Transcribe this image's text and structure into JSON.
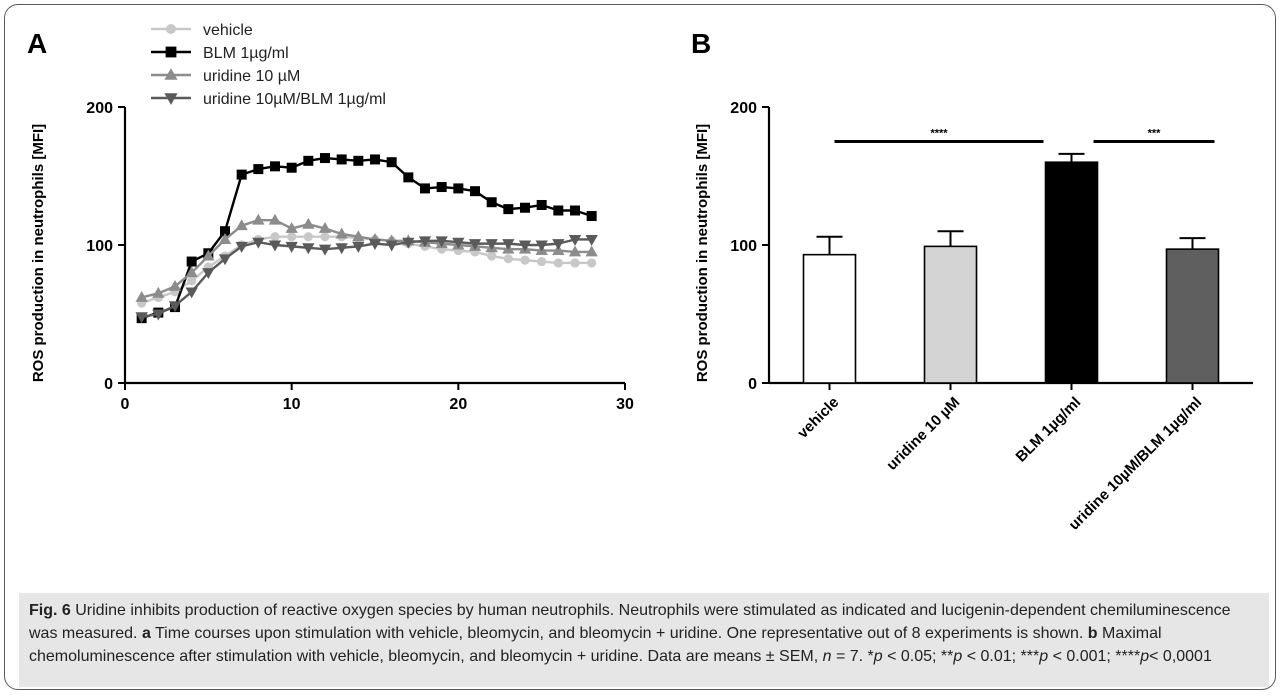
{
  "panels": {
    "a_letter": "A",
    "b_letter": "B"
  },
  "chart_data": [
    {
      "type": "line",
      "ylabel": "ROS production in neutrophils [MFI]",
      "xlabel": "",
      "xlim": [
        0,
        30
      ],
      "ylim": [
        0,
        200
      ],
      "xticks": [
        "0",
        "10",
        "20",
        "30"
      ],
      "yticks": [
        "0",
        "100",
        "200"
      ],
      "legend_position": "top-left",
      "x": [
        1,
        2,
        3,
        4,
        5,
        6,
        7,
        8,
        9,
        10,
        11,
        12,
        13,
        14,
        15,
        16,
        17,
        18,
        19,
        20,
        21,
        22,
        23,
        24,
        25,
        26,
        27,
        28
      ],
      "series": [
        {
          "name": "vehicle",
          "marker": "circle",
          "color": "#c8c8c8",
          "values": [
            58,
            62,
            66,
            74,
            84,
            92,
            100,
            104,
            106,
            106,
            106,
            106,
            106,
            105,
            104,
            103,
            101,
            99,
            97,
            96,
            95,
            92,
            90,
            89,
            88,
            87,
            87,
            87
          ]
        },
        {
          "name": "BLM 1µg/ml",
          "marker": "square",
          "color": "#000000",
          "values": [
            47,
            51,
            55,
            88,
            94,
            110,
            151,
            155,
            157,
            156,
            161,
            163,
            162,
            161,
            162,
            160,
            149,
            141,
            142,
            141,
            139,
            131,
            126,
            127,
            129,
            125,
            125,
            121
          ]
        },
        {
          "name": "uridine 10 µM",
          "marker": "triangle-up",
          "color": "#8c8c8c",
          "values": [
            62,
            65,
            70,
            80,
            92,
            104,
            114,
            118,
            118,
            112,
            115,
            112,
            108,
            106,
            104,
            103,
            103,
            102,
            101,
            100,
            99,
            98,
            97,
            97,
            96,
            96,
            95,
            95
          ]
        },
        {
          "name": "uridine 10µM/BLM 1µg/ml",
          "marker": "triangle-down",
          "color": "#5a5a5a",
          "values": [
            48,
            50,
            56,
            66,
            80,
            90,
            99,
            102,
            100,
            99,
            98,
            97,
            98,
            99,
            101,
            100,
            102,
            103,
            103,
            102,
            101,
            101,
            101,
            100,
            100,
            101,
            104,
            104
          ]
        }
      ]
    },
    {
      "type": "bar",
      "ylabel": "ROS production in neutrophils [MFI]",
      "ylim": [
        0,
        200
      ],
      "yticks": [
        "0",
        "100",
        "200"
      ],
      "categories": [
        "vehicle",
        "uridine 10 µM",
        "BLM 1µg/ml",
        "uridine 10µM/BLM 1µg/ml"
      ],
      "values": [
        93,
        99,
        160,
        97
      ],
      "errors": [
        13,
        11,
        6,
        8
      ],
      "colors": [
        "#ffffff",
        "#d4d4d4",
        "#000000",
        "#5f5f5f"
      ],
      "significance": [
        {
          "from": 0,
          "to": 2,
          "label": "****",
          "y": 175
        },
        {
          "from": 2,
          "to": 3,
          "label": "***",
          "y": 175
        }
      ]
    }
  ],
  "caption": {
    "fig_label": "Fig. 6",
    "title": " Uridine inhibits production of reactive oxygen species by human neutrophils. Neutrophils were stimulated as indicated and lucigenin-dependent chemiluminescence was measured. ",
    "a_label": "a",
    "a_text": " Time courses upon stimulation with vehicle, bleomycin, and bleomycin + uridine. One representative out of 8 experiments is shown. ",
    "b_label": "b",
    "b_text": " Maximal chemoluminescence after stimulation with vehicle, bleomycin, and bleomycin + uridine. Data are means ± SEM, ",
    "n_var": "n",
    "n_text": " = 7. *",
    "p1": "p",
    "t1": " < 0.05; **",
    "p2": "p",
    "t2": " < 0.01; ***",
    "p3": "p",
    "t3": " < 0.001; ****",
    "p4": "p",
    "t4": "< 0,0001"
  }
}
